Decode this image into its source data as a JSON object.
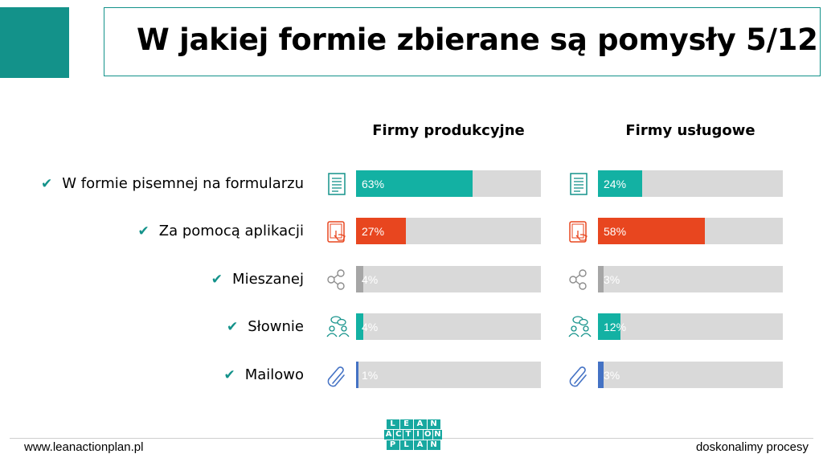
{
  "header": {
    "title": "W jakiej formie zbierane są pomysły 5/12"
  },
  "footer": {
    "left": "www.leanactionplan.pl",
    "right": "doskonalimy procesy"
  },
  "logo": {
    "rows": [
      [
        "L",
        "E",
        "A",
        "N"
      ],
      [
        "A",
        "C",
        "T",
        "I",
        "O",
        "N"
      ],
      [
        "P",
        "L",
        "A",
        "N"
      ]
    ]
  },
  "colors": {
    "teal": "#13b1a3",
    "orange": "#e8461f",
    "gray": "#a6a6a6",
    "blue": "#4472c4",
    "track": "#d9d9d9",
    "icon_teal": "#13928a",
    "icon_orange": "#e8461f"
  },
  "chart_data": {
    "type": "bar",
    "orientation": "horizontal",
    "groups": [
      "Firmy produkcyjne",
      "Firmy usługowe"
    ],
    "categories": [
      "W formie pisemnej na formularzu",
      "Za pomocą aplikacji",
      "Mieszanej",
      "Słownie",
      "Mailowo"
    ],
    "icons": [
      "form-icon",
      "tablet-icon",
      "share-icon",
      "conversation-icon",
      "paperclip-icon"
    ],
    "series": [
      {
        "values": [
          63,
          27,
          4,
          4,
          1
        ],
        "labels": [
          "63%",
          "27%",
          "4%",
          "4%",
          "1%"
        ]
      },
      {
        "values": [
          24,
          58,
          3,
          12,
          3
        ],
        "labels": [
          "24%",
          "58%",
          "3%",
          "12%",
          "3%"
        ]
      }
    ],
    "bar_colors": [
      "#13b1a3",
      "#e8461f",
      "#a6a6a6",
      "#13b1a3",
      "#4472c4"
    ],
    "xlim": [
      0,
      100
    ]
  }
}
